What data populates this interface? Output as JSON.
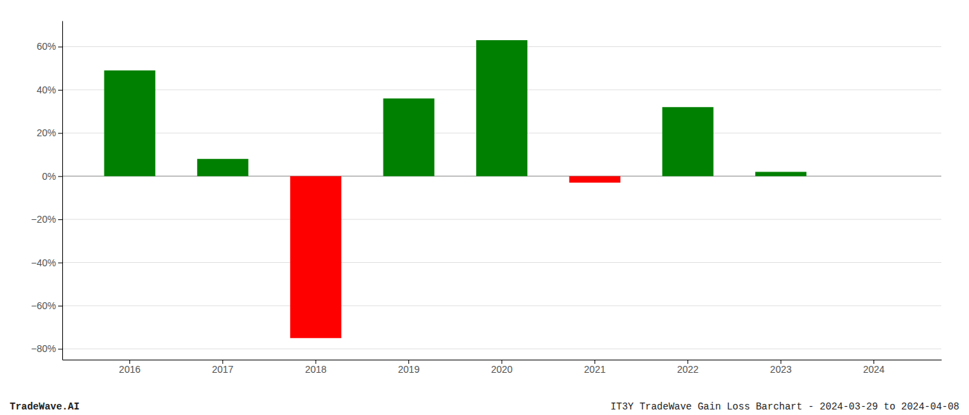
{
  "chart_data": {
    "type": "bar",
    "categories": [
      "2016",
      "2017",
      "2018",
      "2019",
      "2020",
      "2021",
      "2022",
      "2023",
      "2024"
    ],
    "values": [
      0.49,
      0.08,
      -0.75,
      0.36,
      0.63,
      -0.03,
      0.32,
      0.02,
      0.0
    ],
    "colors": [
      "#008000",
      "#008000",
      "#ff0000",
      "#008000",
      "#008000",
      "#ff0000",
      "#008000",
      "#008000",
      "#008000"
    ],
    "ylim": [
      -0.85,
      0.72
    ],
    "yticks": [
      {
        "value": -0.8,
        "label": "−80%"
      },
      {
        "value": -0.6,
        "label": "−60%"
      },
      {
        "value": -0.4,
        "label": "−40%"
      },
      {
        "value": -0.2,
        "label": "−20%"
      },
      {
        "value": 0.0,
        "label": "0%"
      },
      {
        "value": 0.2,
        "label": "20%"
      },
      {
        "value": 0.4,
        "label": "40%"
      },
      {
        "value": 0.6,
        "label": "60%"
      }
    ],
    "grid": true,
    "annotations": [
      "TradeWave.AI",
      "IT3Y TradeWave Gain Loss Barchart - 2024-03-29 to 2024-04-08"
    ]
  }
}
